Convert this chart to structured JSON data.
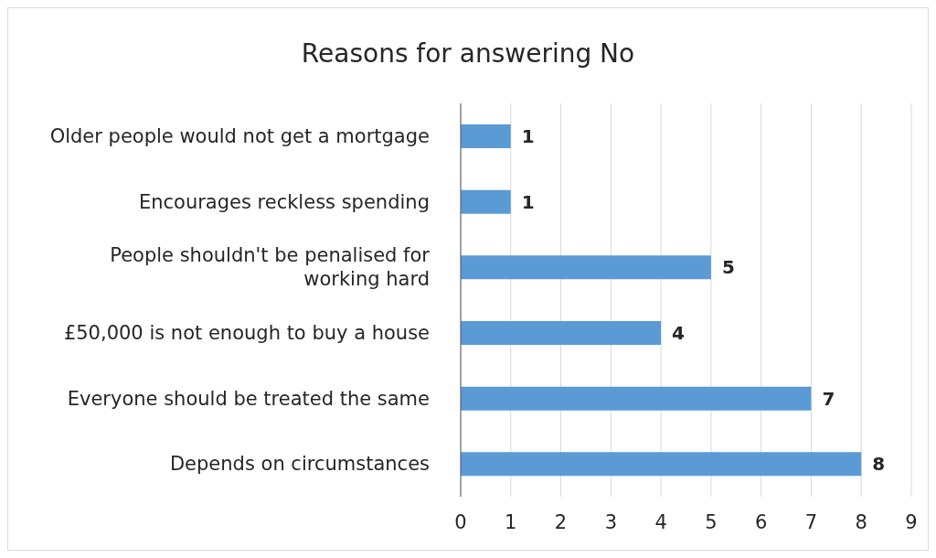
{
  "chart_data": {
    "type": "bar",
    "orientation": "horizontal",
    "title": "Reasons for answering No",
    "categories": [
      "Older people would not get a mortgage",
      "Encourages reckless spending",
      "People shouldn't be penalised for working hard",
      "£50,000 is not enough to buy a house",
      "Everyone should be treated the same",
      "Depends on circumstances"
    ],
    "values": [
      1,
      1,
      5,
      4,
      7,
      8
    ],
    "color": "#5b9bd5",
    "xlim": [
      0,
      9
    ],
    "xticks": [
      0,
      1,
      2,
      3,
      4,
      5,
      6,
      7,
      8,
      9
    ],
    "grid": "x",
    "data_labels": true
  }
}
